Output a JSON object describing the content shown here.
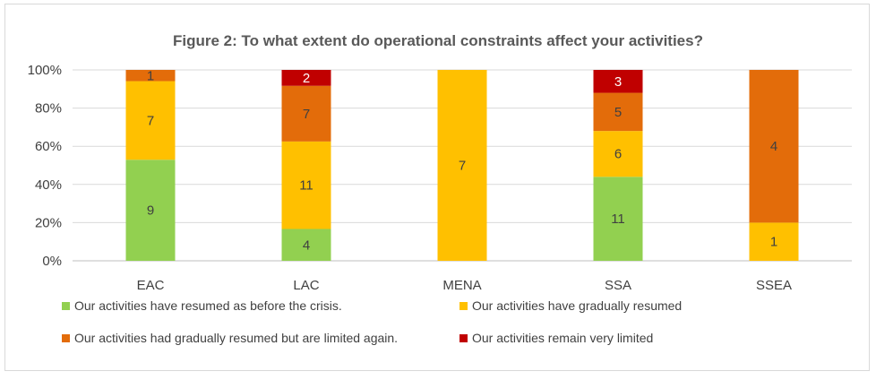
{
  "chart_data": {
    "type": "bar",
    "stacked": true,
    "normalized": true,
    "title": "Figure 2: To what extent do operational constraints affect your activities?",
    "xlabel": "",
    "ylabel": "",
    "ylim": [
      0,
      100
    ],
    "yticks": [
      "0%",
      "20%",
      "40%",
      "60%",
      "80%",
      "100%"
    ],
    "grid": true,
    "legend_position": "bottom",
    "categories": [
      "EAC",
      "LAC",
      "MENA",
      "SSA",
      "SSEA"
    ],
    "series": [
      {
        "name": "Our activities have resumed as before the crisis.",
        "color": "#92d050",
        "values": [
          9,
          4,
          0,
          11,
          0
        ]
      },
      {
        "name": "Our activities have gradually resumed",
        "color": "#ffc000",
        "values": [
          7,
          11,
          7,
          6,
          1
        ]
      },
      {
        "name": "Our activities had gradually resumed but are limited again.",
        "color": "#e36c0a",
        "values": [
          1,
          7,
          0,
          5,
          4
        ]
      },
      {
        "name": "Our activities remain very limited",
        "color": "#c00000",
        "values": [
          0,
          2,
          0,
          3,
          0
        ]
      }
    ]
  }
}
